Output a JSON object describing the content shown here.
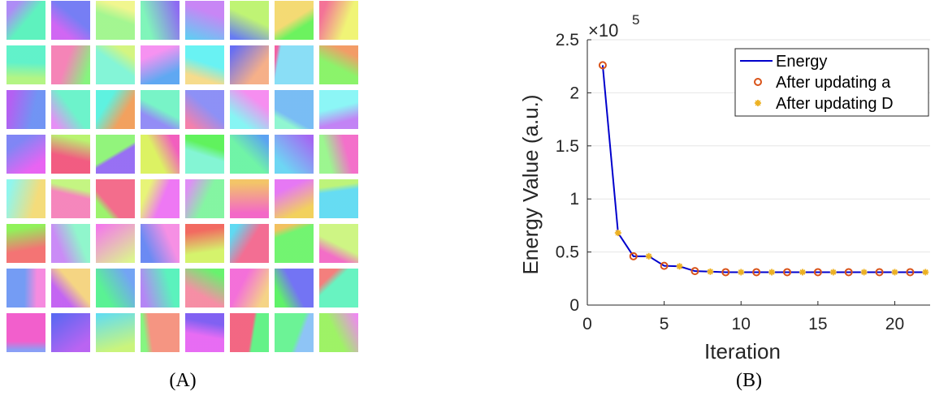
{
  "chart_data": {
    "type": "line",
    "xlabel": "Iteration",
    "ylabel": "Energy Value (a.u.)",
    "y_exponent_base": "×10",
    "y_exponent": "5",
    "xlim": [
      0,
      22.3
    ],
    "ylim": [
      0,
      2.5
    ],
    "xticks": [
      0,
      5,
      10,
      15,
      20
    ],
    "yticks": [
      0,
      0.5,
      1,
      1.5,
      2,
      2.5
    ],
    "grid": true,
    "legend": "upper-right",
    "series": [
      {
        "name": "Energy",
        "color": "#0000cc",
        "style": "line",
        "x": [
          1,
          2,
          3,
          4,
          5,
          6,
          7,
          8,
          9,
          10,
          11,
          12,
          13,
          14,
          15,
          16,
          17,
          18,
          19,
          20,
          21,
          22
        ],
        "values": [
          2.26,
          0.68,
          0.46,
          0.46,
          0.37,
          0.365,
          0.32,
          0.315,
          0.31,
          0.31,
          0.31,
          0.31,
          0.31,
          0.31,
          0.31,
          0.31,
          0.31,
          0.31,
          0.31,
          0.31,
          0.31,
          0.31
        ]
      },
      {
        "name": "After updating a",
        "color": "#d95319",
        "style": "circle",
        "x": [
          1,
          3,
          5,
          7,
          9,
          11,
          13,
          15,
          17,
          19,
          21
        ],
        "values": [
          2.26,
          0.46,
          0.37,
          0.32,
          0.31,
          0.31,
          0.31,
          0.31,
          0.31,
          0.31,
          0.31
        ]
      },
      {
        "name": "After updating D",
        "color": "#edb120",
        "style": "star",
        "x": [
          2,
          4,
          6,
          8,
          10,
          12,
          14,
          16,
          18,
          20,
          22
        ],
        "values": [
          0.68,
          0.46,
          0.365,
          0.315,
          0.31,
          0.31,
          0.31,
          0.31,
          0.31,
          0.31,
          0.31
        ]
      }
    ]
  },
  "panel_labels": [
    "(A)",
    "(B)"
  ]
}
